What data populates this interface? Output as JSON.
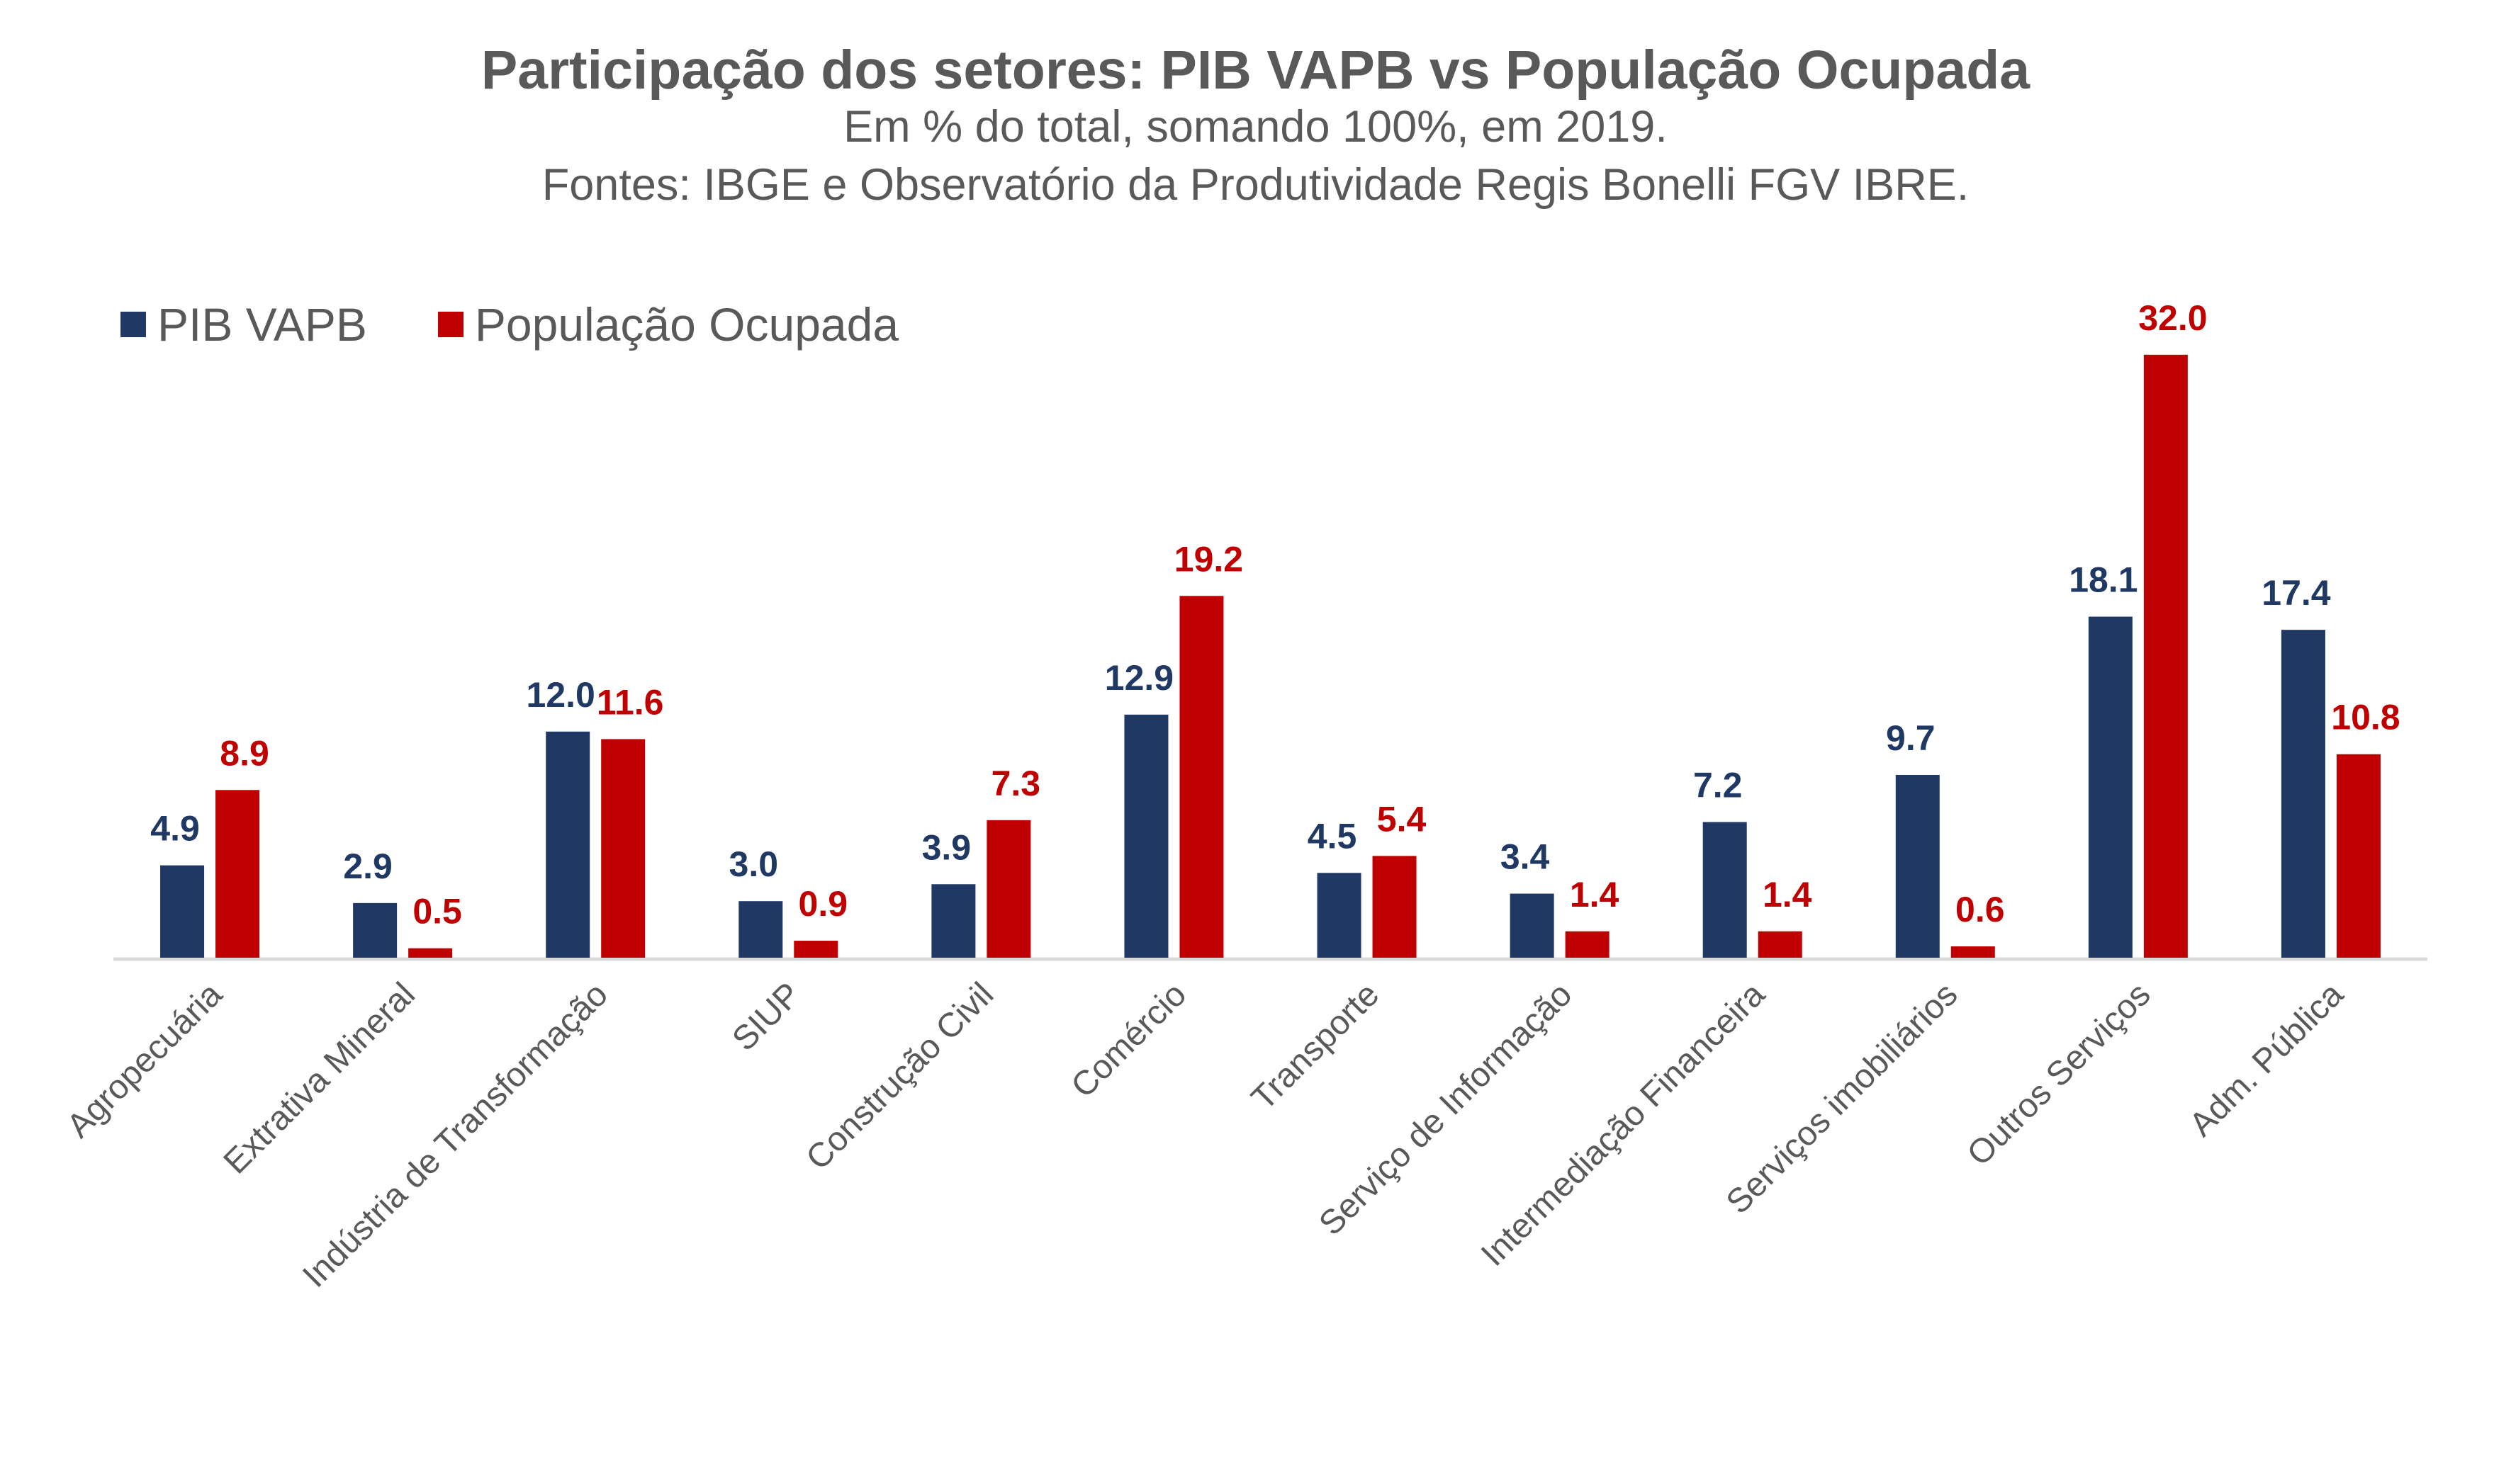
{
  "colors": {
    "pib": "#203864",
    "pop": "#C00000",
    "axis": "#D9D9D9",
    "text": "#595959"
  },
  "chart_data": {
    "type": "bar",
    "title": "Participação dos setores: PIB VAPB vs População Ocupada",
    "subtitle": [
      "Em % do total, somando 100%, em 2019.",
      "Fontes: IBGE e Observatório da Produtividade Regis Bonelli FGV IBRE."
    ],
    "xlabel": "",
    "ylabel": "",
    "ylim": [
      0,
      33
    ],
    "grid": false,
    "legend_position": "top-left",
    "categories": [
      "Agropecuária",
      "Extrativa Mineral",
      "Indústria de Transformação",
      "SIUP",
      "Construção Civil",
      "Comércio",
      "Transporte",
      "Serviço de Informação",
      "Intermediação Financeira",
      "Serviços imobiliários",
      "Outros Serviços",
      "Adm. Pública"
    ],
    "series": [
      {
        "name": "PIB VAPB",
        "values": [
          4.9,
          2.9,
          12.0,
          3.0,
          3.9,
          12.9,
          4.5,
          3.4,
          7.2,
          9.7,
          18.1,
          17.4
        ]
      },
      {
        "name": "População Ocupada",
        "values": [
          8.9,
          0.5,
          11.6,
          0.9,
          7.3,
          19.2,
          5.4,
          1.4,
          1.4,
          0.6,
          32.0,
          10.8
        ]
      }
    ]
  }
}
